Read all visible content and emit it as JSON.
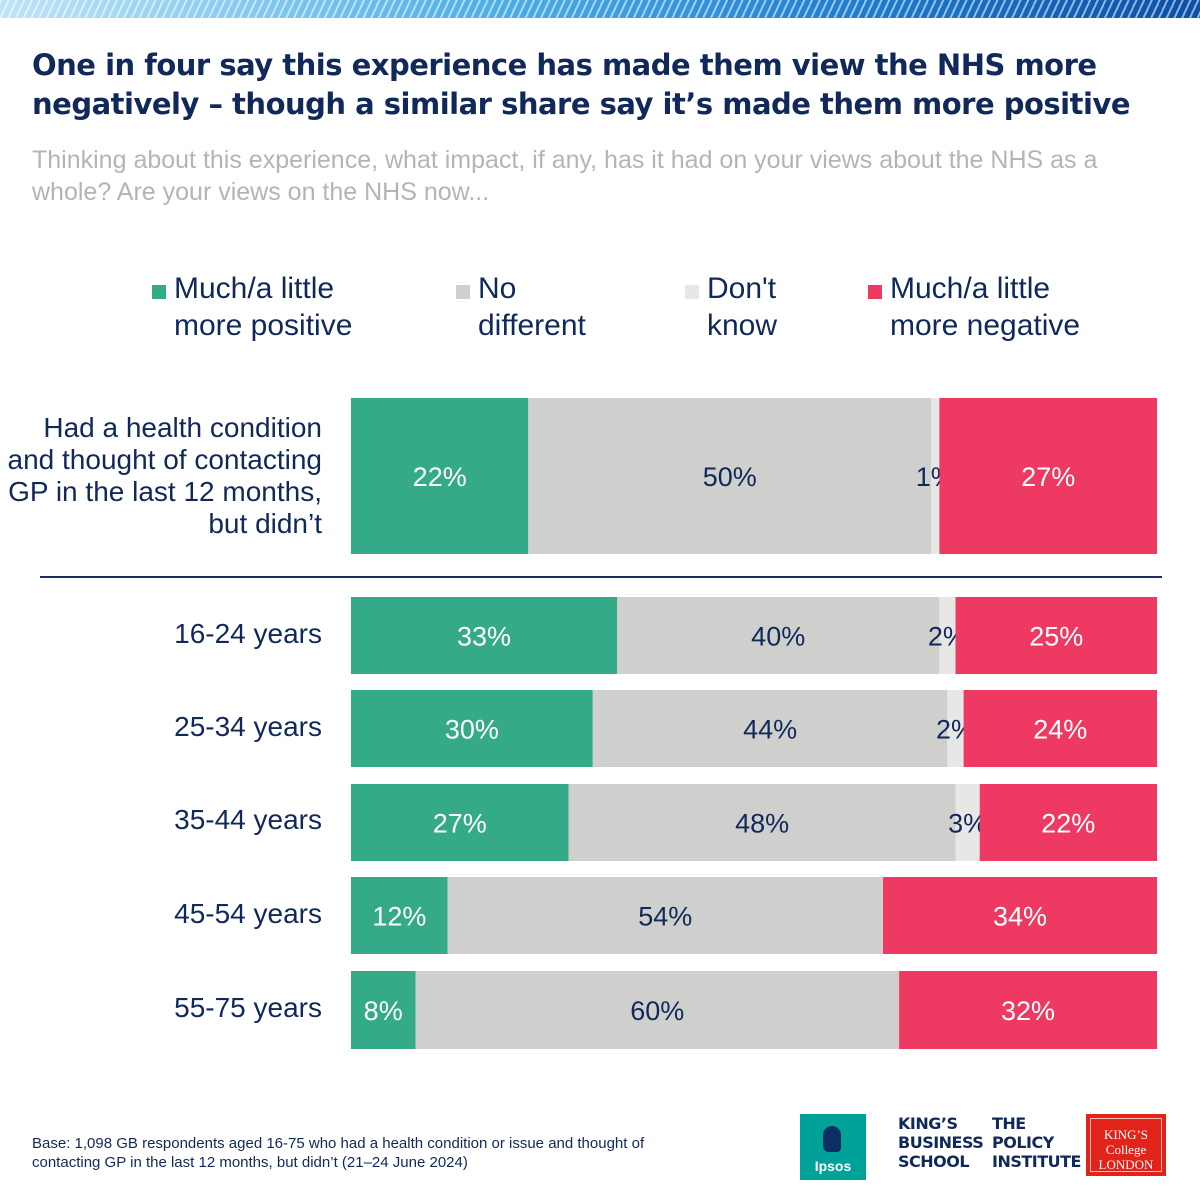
{
  "title": "One in four say this experience has made them view the NHS more negatively – though a similar share say it’s made them more positive",
  "subtitle": "Thinking about this experience, what impact, if any, has it had on your views about the NHS as a whole? Are your views on the NHS now...",
  "legend": [
    {
      "label": "Much/a little\nmore positive",
      "color": "#34aa88"
    },
    {
      "label": "No\ndifferent",
      "color": "#cfd0cd"
    },
    {
      "label": "Don't\nknow",
      "color": "#e7e8e6"
    },
    {
      "label": "Much/a little\nmore negative",
      "color": "#ee3a62"
    }
  ],
  "chart_data": {
    "type": "bar",
    "orientation": "horizontal",
    "stacked": true,
    "categories": [
      "Had a health condition\nand thought of contacting\nGP in the last 12 months,\nbut didn’t",
      "16-24 years",
      "25-34 years",
      "35-44 years",
      "45-54 years",
      "55-75 years"
    ],
    "series": [
      {
        "name": "Much/a little more positive",
        "color": "#34aa88",
        "label_color": "#ffffff",
        "values": [
          22,
          33,
          30,
          27,
          12,
          8
        ]
      },
      {
        "name": "No different",
        "color": "#cfd0cd",
        "label_color": "#11285a",
        "values": [
          50,
          40,
          44,
          48,
          54,
          60
        ]
      },
      {
        "name": "Don't know",
        "color": "#e7e8e6",
        "label_color": "#11285a",
        "values": [
          1,
          2,
          2,
          3,
          0,
          0
        ]
      },
      {
        "name": "Much/a little more negative",
        "color": "#ee3a62",
        "label_color": "#ffffff",
        "values": [
          27,
          25,
          24,
          22,
          34,
          32
        ]
      }
    ],
    "labels": [
      [
        "22%",
        "50%",
        "1%",
        "27%"
      ],
      [
        "33%",
        "40%",
        "2%",
        "25%"
      ],
      [
        "30%",
        "44%",
        "2%",
        "24%"
      ],
      [
        "27%",
        "48%",
        "3%",
        "22%"
      ],
      [
        "12%",
        "54%",
        "",
        "34%"
      ],
      [
        "8%",
        "60%",
        "",
        "32%"
      ]
    ],
    "xlim": [
      0,
      100
    ]
  },
  "footnote": "Base: 1,098 GB respondents aged 16-75 who had a health condition or issue and thought of contacting GP in the last 12 months, but didn’t (21–24 June 2024)",
  "logos": {
    "ipsos": "Ipsos",
    "kbs": "KING’S\nBUSINESS\nSCHOOL",
    "policy": "THE\nPOLICY\nINSTITUTE",
    "kcl": "KING’S\nCollege\nLONDON"
  }
}
